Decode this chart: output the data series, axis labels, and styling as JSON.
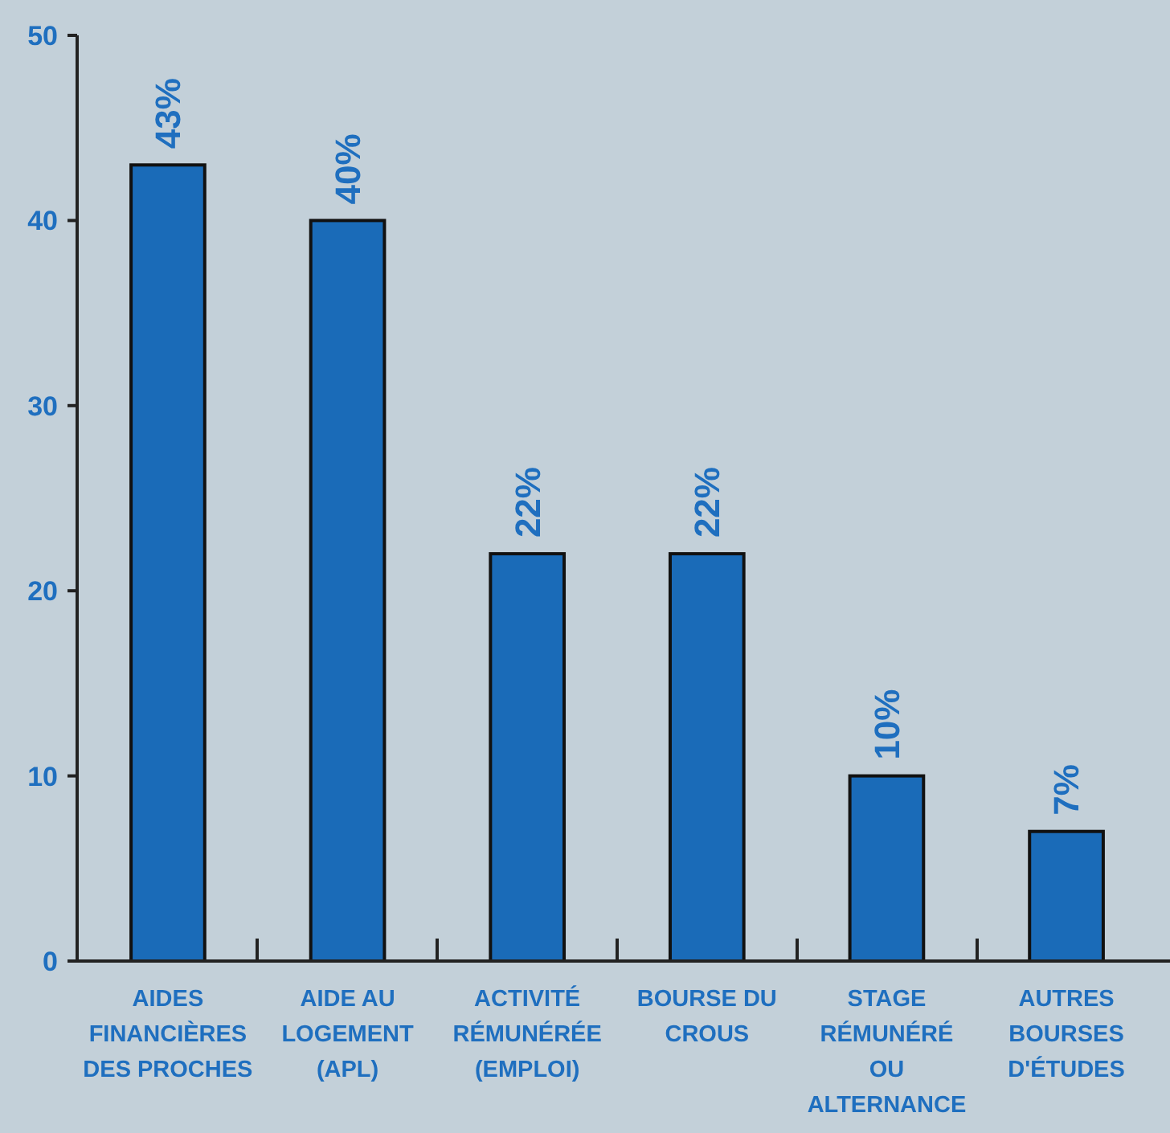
{
  "chart_data": {
    "type": "bar",
    "categories": [
      "AIDES\nFINANCIÈRES\nDES PROCHES",
      "AIDE AU\nLOGEMENT\n(APL)",
      "ACTIVITÉ\nRÉMUNÉRÉE\n(EMPLOI)",
      "BOURSE DU\nCROUS",
      "STAGE\nRÉMUNÉRÉ\nOU\nALTERNANCE",
      "AUTRES\nBOURSES\nD'ÉTUDES"
    ],
    "values": [
      43,
      40,
      22,
      22,
      10,
      7
    ],
    "value_labels": [
      "43%",
      "40%",
      "22%",
      "22%",
      "10%",
      "7%"
    ],
    "color": "#1a6bb8",
    "ylim": [
      0,
      50
    ],
    "yticks": [
      0,
      10,
      20,
      30,
      40,
      50
    ],
    "grid": false
  }
}
